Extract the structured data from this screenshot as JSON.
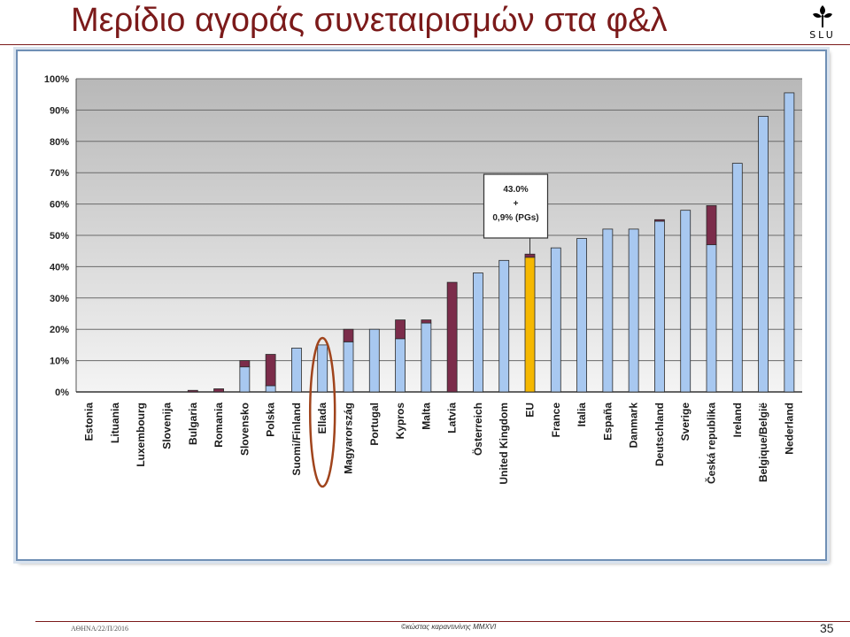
{
  "slide": {
    "title": "Μερίδιο αγοράς συνεταιρισμών στα φ&λ",
    "logo_text": "SLU",
    "footer_left": "ΑΘΗΝΑ/22/Π/2016",
    "footer_center": "©κώστας καραντινίνης MMXVI",
    "page_number": "35"
  },
  "chart_data": {
    "type": "bar",
    "stacked": true,
    "categories": [
      "Estonia",
      "Lituania",
      "Luxembourg",
      "Slovenija",
      "Bulgaria",
      "Romania",
      "Slovensko",
      "Polska",
      "Suomi/Finland",
      "Ellada",
      "Magyarország",
      "Portugal",
      "Kypros",
      "Malta",
      "Latvia",
      "Österreich",
      "United Kingdom",
      "EU",
      "France",
      "Italia",
      "España",
      "Danmark",
      "Deutschland",
      "Sverige",
      "Česká republika",
      "Ireland",
      "Belgique/België",
      "Nederland"
    ],
    "series": [
      {
        "values": [
          0,
          0,
          0,
          0,
          0,
          0,
          8,
          2,
          14,
          15,
          16,
          20,
          17,
          22,
          0,
          38,
          42,
          43,
          46,
          49,
          52,
          52,
          54.5,
          58,
          47,
          73,
          88,
          95.5
        ]
      },
      {
        "values": [
          0,
          0,
          0,
          0,
          0.5,
          1,
          2,
          10,
          0,
          0,
          4,
          0,
          6,
          1,
          35,
          0,
          0,
          1,
          0,
          0,
          0,
          0,
          0.5,
          0,
          12.5,
          0,
          0,
          0
        ]
      }
    ],
    "highlight": {
      "category": "EU",
      "color": "#f5b800"
    },
    "ylim": [
      0,
      100
    ],
    "yticks": [
      "0%",
      "10%",
      "20%",
      "30%",
      "40%",
      "50%",
      "60%",
      "70%",
      "80%",
      "90%",
      "100%"
    ],
    "annotation": {
      "lines": [
        "43.0%",
        "+",
        "0,9% (PGs)"
      ],
      "target": "EU"
    },
    "circled_category": "Ellada",
    "grid": true,
    "colors": {
      "series1": "#a8c8f0",
      "series2": "#7b2c4a",
      "highlight": "#f5b800",
      "circle": "#a0441c"
    }
  }
}
